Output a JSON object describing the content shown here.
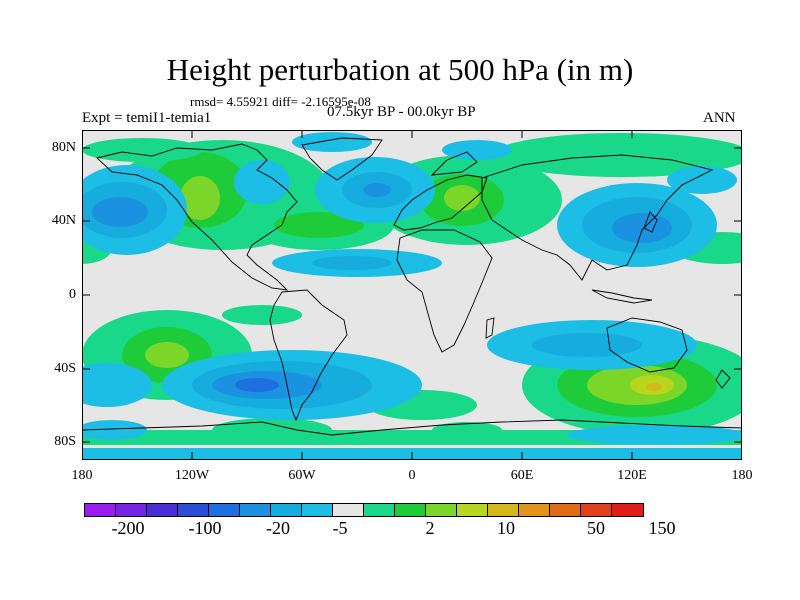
{
  "header": {
    "title": "Height perturbation at 500 hPa (in m)",
    "stats": "rmsd= 4.55921 diff= -2.16595e-08",
    "experiment": "Expt = temiI1-temia1",
    "period": "07.5kyr BP - 00.0kyr BP",
    "season": "ANN"
  },
  "axes": {
    "y_ticks": [
      "80N",
      "40N",
      "0",
      "40S",
      "80S"
    ],
    "x_ticks": [
      "180",
      "120W",
      "60W",
      "0",
      "60E",
      "120E",
      "180"
    ]
  },
  "colorbar": {
    "colors": [
      "#9a1cf2",
      "#7624e6",
      "#4a2fd6",
      "#2a4ed6",
      "#1e6fe0",
      "#1a92e0",
      "#17acde",
      "#1dbee6",
      "#e6e6e6",
      "#1ad88a",
      "#1ecc3a",
      "#7cd62a",
      "#b8d61e",
      "#d6b81a",
      "#e0941a",
      "#e06c1a",
      "#e0401a",
      "#e01e1a"
    ],
    "labels": [
      "-200",
      "-100",
      "-20",
      "-5",
      "2",
      "10",
      "50",
      "150"
    ]
  },
  "colors": {
    "background": "#e6e6e6",
    "coast": "#000000"
  }
}
